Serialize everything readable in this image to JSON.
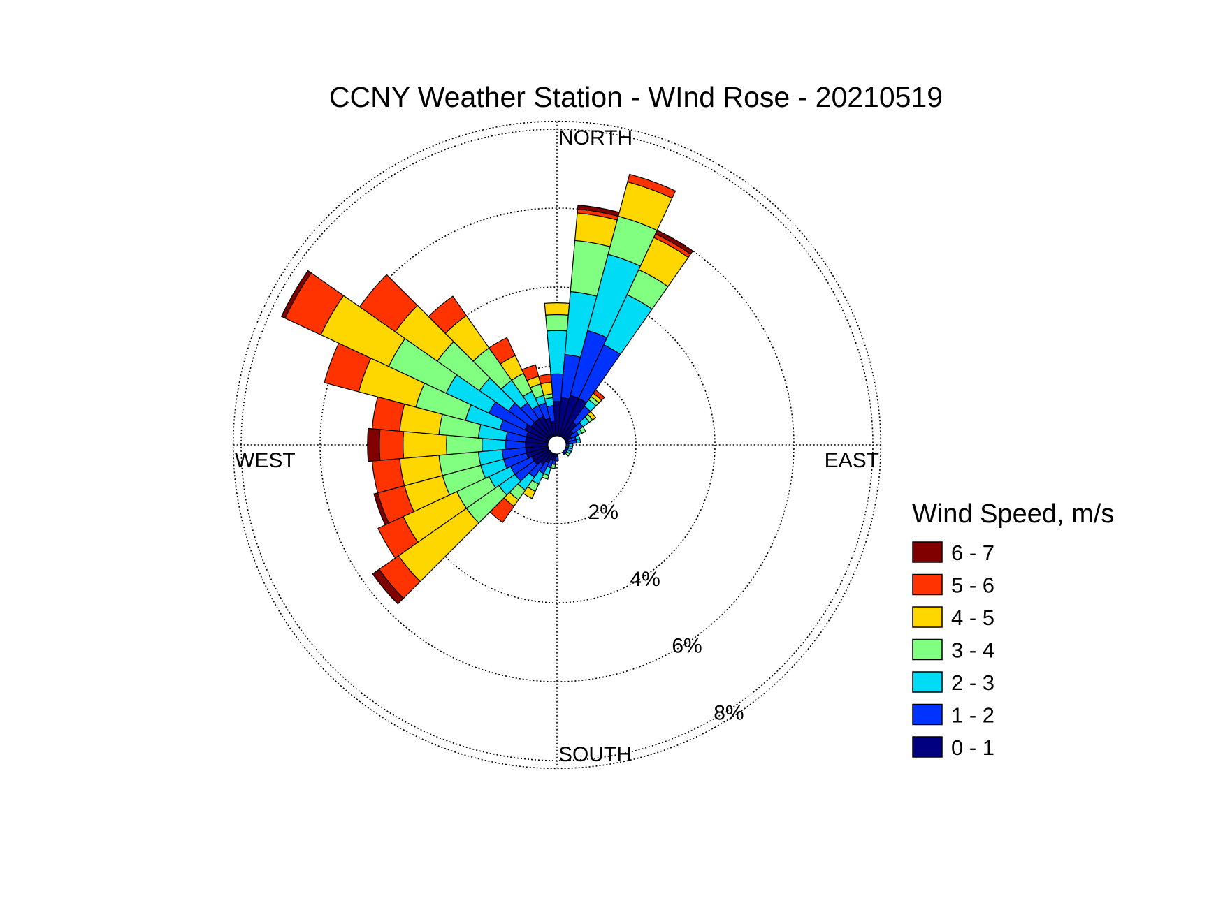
{
  "chart_data": {
    "type": "wind_rose",
    "title": "CCNY Weather Station - WInd Rose - 20210519",
    "direction_labels": {
      "north": "NORTH",
      "south": "SOUTH",
      "east": "EAST",
      "west": "WEST"
    },
    "radial_unit": "%",
    "radial_ticks": [
      {
        "value": 2,
        "label": "2%"
      },
      {
        "value": 4,
        "label": "4%"
      },
      {
        "value": 6,
        "label": "6%"
      },
      {
        "value": 8,
        "label": "8%"
      }
    ],
    "radial_max": 8.2,
    "legend_title": "Wind Speed, m/s",
    "legend_placement": "right",
    "bins": [
      {
        "label": "0 - 1",
        "color": "#000080"
      },
      {
        "label": "1 - 2",
        "color": "#0033ff"
      },
      {
        "label": "2 - 3",
        "color": "#00dcf5"
      },
      {
        "label": "3 - 4",
        "color": "#80ff80"
      },
      {
        "label": "4 - 5",
        "color": "#ffd700"
      },
      {
        "label": "5 - 6",
        "color": "#ff3300"
      },
      {
        "label": "6 - 7",
        "color": "#800000"
      }
    ],
    "sector_width_deg": 10,
    "sectors": [
      {
        "direction": 0,
        "cumulative": [
          1.1,
          1.8,
          2.9,
          3.3,
          3.6,
          3.6,
          3.6
        ]
      },
      {
        "direction": 10,
        "cumulative": [
          1.2,
          2.3,
          3.9,
          5.2,
          5.9,
          6.0,
          6.1
        ]
      },
      {
        "direction": 20,
        "cumulative": [
          1.3,
          3.0,
          5.0,
          6.0,
          6.9,
          7.1,
          7.1
        ]
      },
      {
        "direction": 30,
        "cumulative": [
          1.3,
          2.8,
          4.2,
          4.9,
          5.8,
          5.9,
          6.0
        ]
      },
      {
        "direction": 40,
        "cumulative": [
          0.7,
          1.2,
          1.4,
          1.5,
          1.6,
          1.7,
          1.7
        ]
      },
      {
        "direction": 50,
        "cumulative": [
          0.5,
          0.8,
          1.0,
          1.1,
          1.2,
          1.2,
          1.2
        ]
      },
      {
        "direction": 60,
        "cumulative": [
          0.4,
          0.6,
          0.7,
          0.8,
          0.8,
          0.8,
          0.8
        ]
      },
      {
        "direction": 70,
        "cumulative": [
          0.3,
          0.5,
          0.6,
          0.6,
          0.6,
          0.6,
          0.6
        ]
      },
      {
        "direction": 80,
        "cumulative": [
          0.3,
          0.5,
          0.6,
          0.6,
          0.6,
          0.6,
          0.6
        ]
      },
      {
        "direction": 90,
        "cumulative": [
          0.2,
          0.3,
          0.4,
          0.4,
          0.4,
          0.4,
          0.4
        ]
      },
      {
        "direction": 100,
        "cumulative": [
          0.2,
          0.3,
          0.4,
          0.4,
          0.4,
          0.4,
          0.4
        ]
      },
      {
        "direction": 110,
        "cumulative": [
          0.2,
          0.3,
          0.4,
          0.4,
          0.4,
          0.4,
          0.4
        ]
      },
      {
        "direction": 120,
        "cumulative": [
          0.2,
          0.3,
          0.4,
          0.4,
          0.4,
          0.4,
          0.4
        ]
      },
      {
        "direction": 130,
        "cumulative": [
          0.2,
          0.3,
          0.3,
          0.4,
          0.4,
          0.4,
          0.4
        ]
      },
      {
        "direction": 140,
        "cumulative": [
          0.2,
          0.3,
          0.3,
          0.3,
          0.3,
          0.3,
          0.3
        ]
      },
      {
        "direction": 150,
        "cumulative": [
          0.2,
          0.2,
          0.2,
          0.2,
          0.2,
          0.2,
          0.2
        ]
      },
      {
        "direction": 160,
        "cumulative": [
          0.2,
          0.2,
          0.2,
          0.2,
          0.2,
          0.2,
          0.2
        ]
      },
      {
        "direction": 170,
        "cumulative": [
          0.2,
          0.2,
          0.2,
          0.2,
          0.2,
          0.2,
          0.2
        ]
      },
      {
        "direction": 180,
        "cumulative": [
          0.3,
          0.4,
          0.4,
          0.4,
          0.4,
          0.4,
          0.4
        ]
      },
      {
        "direction": 190,
        "cumulative": [
          0.4,
          0.5,
          0.5,
          0.6,
          0.6,
          0.6,
          0.6
        ]
      },
      {
        "direction": 200,
        "cumulative": [
          0.4,
          0.6,
          0.8,
          0.9,
          0.9,
          0.9,
          0.9
        ]
      },
      {
        "direction": 210,
        "cumulative": [
          0.5,
          0.8,
          1.1,
          1.3,
          1.5,
          1.5,
          1.5
        ]
      },
      {
        "direction": 220,
        "cumulative": [
          0.6,
          1.0,
          1.4,
          1.7,
          1.9,
          2.4,
          2.4
        ]
      },
      {
        "direction": 230,
        "cumulative": [
          0.7,
          1.3,
          1.8,
          2.8,
          4.9,
          5.5,
          5.7
        ]
      },
      {
        "direction": 240,
        "cumulative": [
          0.7,
          1.3,
          1.9,
          2.8,
          4.3,
          5.0,
          5.0
        ]
      },
      {
        "direction": 250,
        "cumulative": [
          0.8,
          1.4,
          2.0,
          3.0,
          4.0,
          4.7,
          4.8
        ]
      },
      {
        "direction": 260,
        "cumulative": [
          0.8,
          1.4,
          2.0,
          3.0,
          4.0,
          4.7,
          4.7
        ]
      },
      {
        "direction": 270,
        "cumulative": [
          0.8,
          1.3,
          1.9,
          2.8,
          3.9,
          4.5,
          4.8
        ]
      },
      {
        "direction": 280,
        "cumulative": [
          0.8,
          1.3,
          2.0,
          3.0,
          4.0,
          4.7,
          4.7
        ]
      },
      {
        "direction": 290,
        "cumulative": [
          0.8,
          1.5,
          2.4,
          3.7,
          5.2,
          6.1,
          6.1
        ]
      },
      {
        "direction": 300,
        "cumulative": [
          0.9,
          1.9,
          3.1,
          4.7,
          6.6,
          7.6,
          7.7
        ]
      },
      {
        "direction": 310,
        "cumulative": [
          0.8,
          1.5,
          2.4,
          3.7,
          5.0,
          6.1,
          6.1
        ]
      },
      {
        "direction": 320,
        "cumulative": [
          0.8,
          1.3,
          2.0,
          3.0,
          4.0,
          4.6,
          4.6
        ]
      },
      {
        "direction": 330,
        "cumulative": [
          0.8,
          1.1,
          1.5,
          2.0,
          2.5,
          3.0,
          3.0
        ]
      },
      {
        "direction": 340,
        "cumulative": [
          0.7,
          1.1,
          1.3,
          1.6,
          1.8,
          2.1,
          2.1
        ]
      },
      {
        "direction": 350,
        "cumulative": [
          0.6,
          1.0,
          1.2,
          1.3,
          1.6,
          1.8,
          1.8
        ]
      }
    ]
  }
}
